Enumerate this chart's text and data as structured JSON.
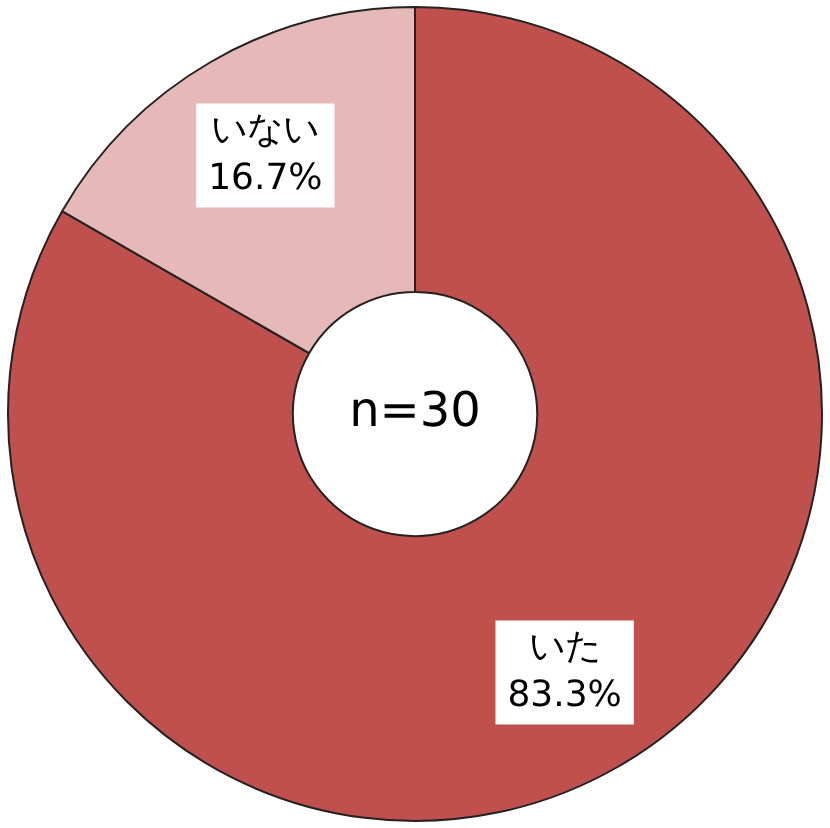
{
  "chart_data": {
    "type": "donut",
    "categories": [
      "いた",
      "いない"
    ],
    "values": [
      83.3,
      16.7
    ],
    "value_labels": [
      "83.3%",
      "16.7%"
    ],
    "colors": [
      "#c0504d",
      "#e6b9b8"
    ],
    "annotations": [
      "n=30"
    ]
  }
}
